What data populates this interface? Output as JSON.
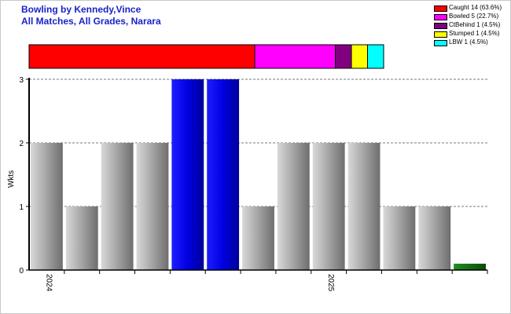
{
  "title_line1": "Bowling by Kennedy,Vince",
  "title_line2": "All Matches, All Grades, Narara",
  "legend": [
    {
      "label": "Caught 14 (63.6%)",
      "color": "#ff0000"
    },
    {
      "label": "Bowled 5 (22.7%)",
      "color": "#ff00ff"
    },
    {
      "label": "CtBehind 1 (4.5%)",
      "color": "#800080"
    },
    {
      "label": "Stumped 1 (4.5%)",
      "color": "#ffff00"
    },
    {
      "label": "LBW 1 (4.5%)",
      "color": "#00ffff"
    }
  ],
  "chart_data": [
    {
      "type": "bar",
      "stacked": true,
      "orientation": "horizontal",
      "series": [
        {
          "name": "Caught",
          "value": 14,
          "color": "#ff0000"
        },
        {
          "name": "Bowled",
          "value": 5,
          "color": "#ff00ff"
        },
        {
          "name": "CtBehind",
          "value": 1,
          "color": "#800080"
        },
        {
          "name": "Stumped",
          "value": 1,
          "color": "#ffff00"
        },
        {
          "name": "LBW",
          "value": 1,
          "color": "#00ffff"
        }
      ]
    },
    {
      "type": "bar",
      "ylabel": "Wkts",
      "ylim": [
        0,
        3
      ],
      "yticks": [
        0,
        1,
        2,
        3
      ],
      "xtick_labels": [
        {
          "label": "2024",
          "index": 0
        },
        {
          "label": "2025",
          "index": 8
        }
      ],
      "values": [
        2,
        1,
        2,
        2,
        3,
        3,
        1,
        2,
        2,
        2,
        1,
        1,
        0.1
      ],
      "bar_styles": [
        "gray",
        "gray",
        "gray",
        "gray",
        "blue",
        "blue",
        "gray",
        "gray",
        "gray",
        "gray",
        "gray",
        "gray",
        "green"
      ],
      "grid": "horizontal dashed"
    }
  ]
}
